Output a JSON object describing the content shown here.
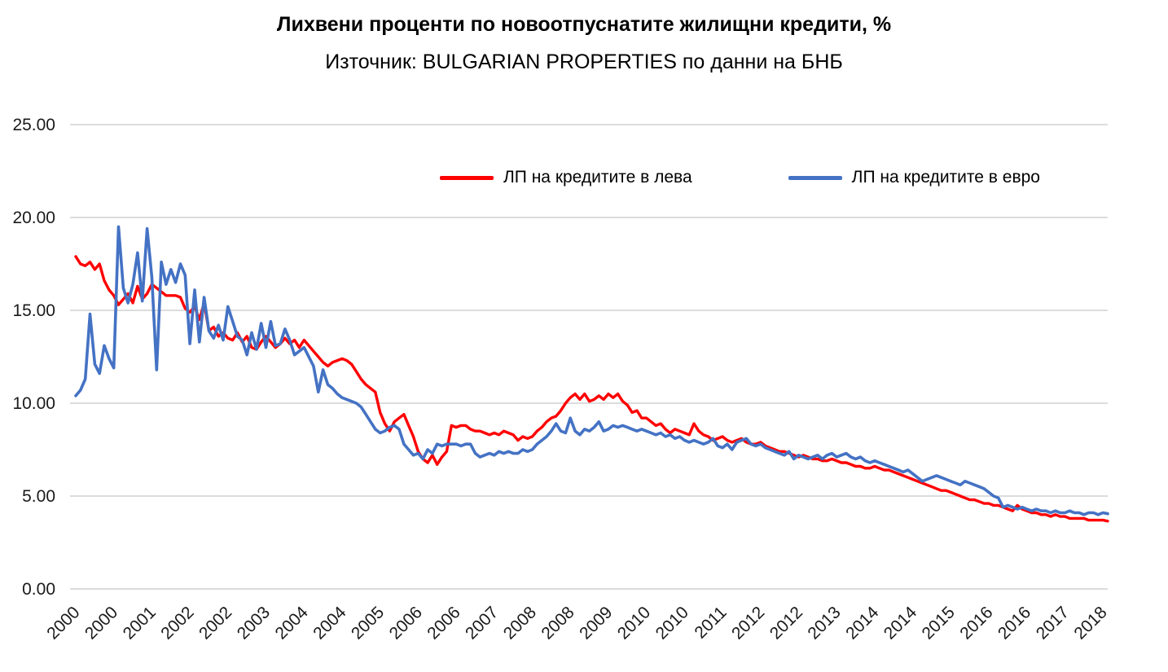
{
  "header": {
    "title": "Лихвени проценти по новоотпуснатите жилищни кредити, %",
    "subtitle": "Източник: BULGARIAN PROPERTIES по данни на БНБ"
  },
  "legend": {
    "items": [
      {
        "label": "ЛП на кредитите в лева",
        "color": "#FF0000"
      },
      {
        "label": "ЛП на кредитите в евро",
        "color": "#4472C4"
      }
    ]
  },
  "chart_data": {
    "type": "line",
    "title": "Лихвени проценти по новоотпуснатите жилищни кредити, %",
    "subtitle": "Източник: BULGARIAN PROPERTIES по данни на БНБ",
    "x_frequency": "monthly",
    "x_start": "2000-01",
    "x_end": "2018-02",
    "ylim": [
      0,
      25
    ],
    "grid": true,
    "gridline_color": "#c8c8c8",
    "legend_position": "top-center-inside",
    "y_ticks": [
      "0.00",
      "5.00",
      "10.00",
      "15.00",
      "20.00",
      "25.00"
    ],
    "x_tick_labels": [
      "2000",
      "2000",
      "2001",
      "2002",
      "2002",
      "2003",
      "2004",
      "2004",
      "2005",
      "2006",
      "2006",
      "2007",
      "2008",
      "2008",
      "2009",
      "2010",
      "2010",
      "2011",
      "2012",
      "2012",
      "2013",
      "2014",
      "2014",
      "2015",
      "2016",
      "2016",
      "2017",
      "2018"
    ],
    "x_tick_month_indices": [
      0,
      8,
      16,
      24,
      32,
      40,
      48,
      56,
      64,
      72,
      80,
      88,
      96,
      104,
      112,
      120,
      128,
      136,
      144,
      152,
      160,
      168,
      176,
      184,
      192,
      200,
      208,
      216
    ],
    "series": [
      {
        "name": "ЛП на кредитите в лева",
        "color": "#FF0000",
        "stroke_width": 3.4,
        "values": [
          17.9,
          17.5,
          17.4,
          17.6,
          17.2,
          17.5,
          16.6,
          16.1,
          15.8,
          15.3,
          15.6,
          15.9,
          15.4,
          16.3,
          15.6,
          15.9,
          16.4,
          16.2,
          16.0,
          15.8,
          15.8,
          15.8,
          15.7,
          15.1,
          14.9,
          15.2,
          14.5,
          15.4,
          13.9,
          14.1,
          13.6,
          13.8,
          13.5,
          13.4,
          13.8,
          13.3,
          13.6,
          13.0,
          12.9,
          13.3,
          13.6,
          13.3,
          13.0,
          13.2,
          13.5,
          13.2,
          13.4,
          13.0,
          13.4,
          13.1,
          12.8,
          12.5,
          12.2,
          12.0,
          12.2,
          12.3,
          12.4,
          12.3,
          12.1,
          11.7,
          11.3,
          11.0,
          10.8,
          10.6,
          9.5,
          8.9,
          8.5,
          9.0,
          9.2,
          9.4,
          8.8,
          8.2,
          7.4,
          7.0,
          6.8,
          7.2,
          6.7,
          7.1,
          7.4,
          8.8,
          8.7,
          8.8,
          8.8,
          8.6,
          8.5,
          8.5,
          8.4,
          8.3,
          8.4,
          8.3,
          8.5,
          8.4,
          8.3,
          8.0,
          8.2,
          8.1,
          8.2,
          8.5,
          8.7,
          9.0,
          9.2,
          9.3,
          9.6,
          10.0,
          10.3,
          10.5,
          10.2,
          10.5,
          10.1,
          10.2,
          10.4,
          10.2,
          10.5,
          10.3,
          10.5,
          10.1,
          9.9,
          9.5,
          9.6,
          9.2,
          9.2,
          9.0,
          8.8,
          8.9,
          8.6,
          8.4,
          8.6,
          8.5,
          8.4,
          8.3,
          8.9,
          8.5,
          8.3,
          8.2,
          8.0,
          8.1,
          8.2,
          8.0,
          7.9,
          8.0,
          8.1,
          7.9,
          7.8,
          7.8,
          7.9,
          7.7,
          7.6,
          7.5,
          7.4,
          7.4,
          7.3,
          7.2,
          7.1,
          7.2,
          7.1,
          7.0,
          7.0,
          6.9,
          6.9,
          7.0,
          6.9,
          6.8,
          6.8,
          6.7,
          6.6,
          6.6,
          6.5,
          6.5,
          6.6,
          6.5,
          6.4,
          6.4,
          6.3,
          6.2,
          6.1,
          6.0,
          5.9,
          5.8,
          5.7,
          5.6,
          5.5,
          5.4,
          5.3,
          5.3,
          5.2,
          5.1,
          5.0,
          4.9,
          4.8,
          4.8,
          4.7,
          4.6,
          4.6,
          4.5,
          4.5,
          4.4,
          4.3,
          4.2,
          4.5,
          4.3,
          4.2,
          4.1,
          4.1,
          4.0,
          4.0,
          3.9,
          4.0,
          3.9,
          3.9,
          3.8,
          3.8,
          3.8,
          3.8,
          3.7,
          3.7,
          3.7,
          3.7,
          3.65
        ]
      },
      {
        "name": "ЛП на кредитите в евро",
        "color": "#4472C4",
        "stroke_width": 3.6,
        "values": [
          10.4,
          10.7,
          11.3,
          14.8,
          12.1,
          11.6,
          13.1,
          12.4,
          11.9,
          19.5,
          16.2,
          15.4,
          16.4,
          18.1,
          15.5,
          19.4,
          16.8,
          11.8,
          17.6,
          16.4,
          17.2,
          16.5,
          17.5,
          16.9,
          13.2,
          16.1,
          13.3,
          15.7,
          13.9,
          13.5,
          14.2,
          13.4,
          15.2,
          14.4,
          13.6,
          13.4,
          12.6,
          13.8,
          12.9,
          14.3,
          13.0,
          14.4,
          13.1,
          13.2,
          14.0,
          13.4,
          12.6,
          12.8,
          13.0,
          12.5,
          12.0,
          10.6,
          11.8,
          11.0,
          10.8,
          10.5,
          10.3,
          10.2,
          10.1,
          10.0,
          9.8,
          9.4,
          9.0,
          8.6,
          8.4,
          8.5,
          8.7,
          8.8,
          8.6,
          7.8,
          7.5,
          7.2,
          7.3,
          7.0,
          7.5,
          7.3,
          7.8,
          7.7,
          7.8,
          7.8,
          7.8,
          7.7,
          7.8,
          7.8,
          7.3,
          7.1,
          7.2,
          7.3,
          7.2,
          7.4,
          7.3,
          7.4,
          7.3,
          7.3,
          7.5,
          7.4,
          7.5,
          7.8,
          8.0,
          8.2,
          8.5,
          8.9,
          8.5,
          8.4,
          9.2,
          8.5,
          8.3,
          8.6,
          8.5,
          8.7,
          9.0,
          8.5,
          8.6,
          8.8,
          8.7,
          8.8,
          8.7,
          8.6,
          8.5,
          8.6,
          8.5,
          8.4,
          8.3,
          8.4,
          8.2,
          8.3,
          8.1,
          8.2,
          8.0,
          7.9,
          8.0,
          7.9,
          7.8,
          7.9,
          8.1,
          7.7,
          7.6,
          7.8,
          7.5,
          7.9,
          8.0,
          8.1,
          7.8,
          7.7,
          7.8,
          7.6,
          7.5,
          7.4,
          7.3,
          7.2,
          7.4,
          7.0,
          7.2,
          7.1,
          7.0,
          7.1,
          7.2,
          7.0,
          7.2,
          7.3,
          7.1,
          7.2,
          7.3,
          7.1,
          7.0,
          7.1,
          6.9,
          6.8,
          6.9,
          6.8,
          6.7,
          6.6,
          6.5,
          6.4,
          6.3,
          6.4,
          6.2,
          6.0,
          5.8,
          5.9,
          6.0,
          6.1,
          6.0,
          5.9,
          5.8,
          5.7,
          5.6,
          5.8,
          5.7,
          5.6,
          5.5,
          5.4,
          5.2,
          5.0,
          4.9,
          4.4,
          4.5,
          4.4,
          4.3,
          4.4,
          4.3,
          4.2,
          4.3,
          4.2,
          4.2,
          4.1,
          4.2,
          4.1,
          4.1,
          4.2,
          4.1,
          4.1,
          4.0,
          4.1,
          4.1,
          4.0,
          4.1,
          4.05
        ]
      }
    ]
  }
}
